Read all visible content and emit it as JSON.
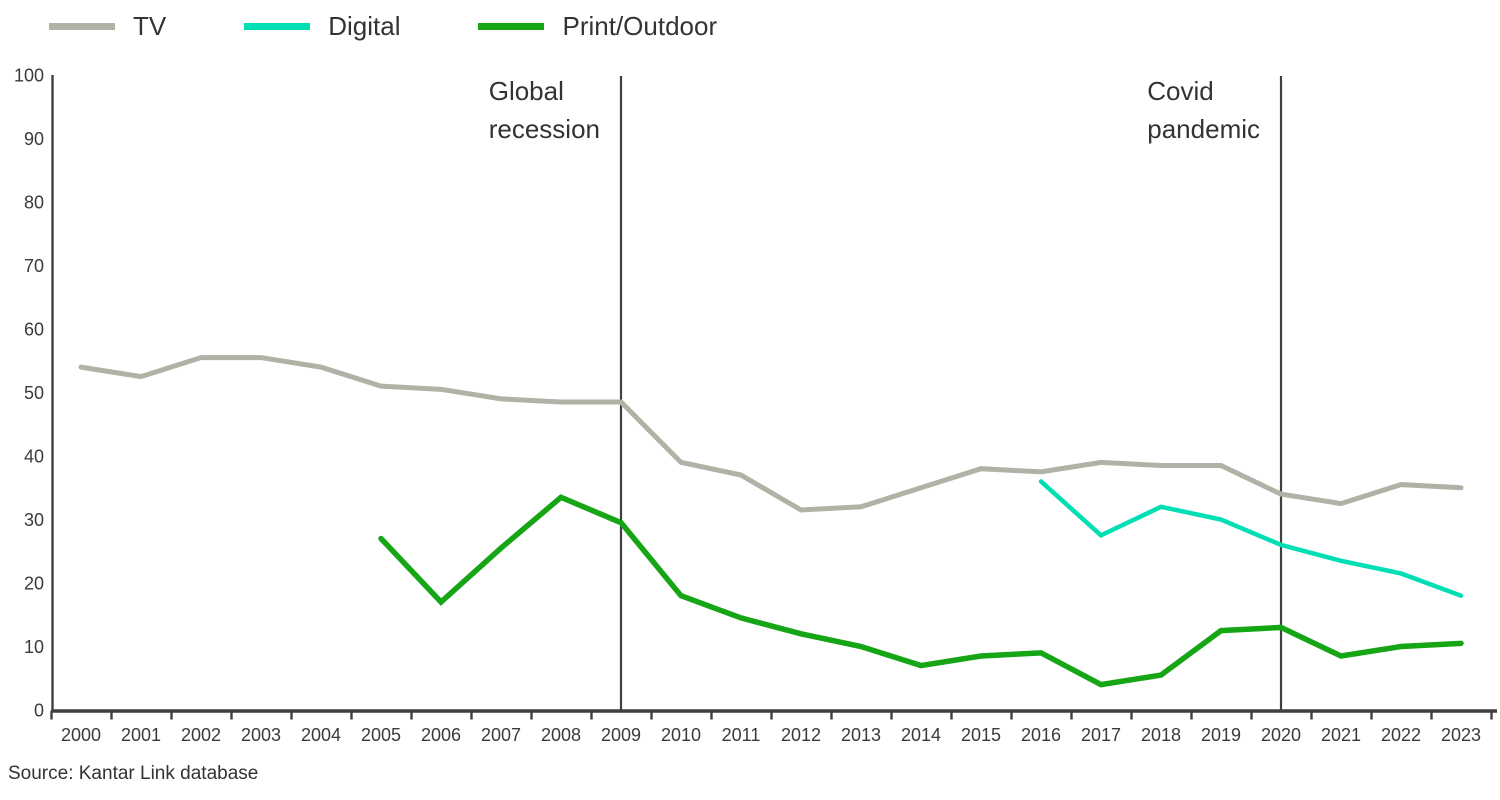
{
  "legend": {
    "items": [
      {
        "id": "tv",
        "label": "TV",
        "color": "#b1b1a5"
      },
      {
        "id": "digital",
        "label": "Digital",
        "color": "#00dfb4"
      },
      {
        "id": "print-outdoor",
        "label": "Print/Outdoor",
        "color": "#15a515"
      }
    ]
  },
  "source": "Source: Kantar Link database",
  "chart_data": {
    "type": "line",
    "title": "",
    "xlabel": "",
    "ylabel": "",
    "x_years": [
      2000,
      2001,
      2002,
      2003,
      2004,
      2005,
      2006,
      2007,
      2008,
      2009,
      2010,
      2011,
      2012,
      2013,
      2014,
      2015,
      2016,
      2017,
      2018,
      2019,
      2020,
      2021,
      2022,
      2023
    ],
    "yticks": [
      0,
      10,
      20,
      30,
      40,
      50,
      60,
      70,
      80,
      90,
      100
    ],
    "ylim": [
      0,
      100
    ],
    "grid": false,
    "legend_position": "top-left",
    "axis_color": "#3f3f3f",
    "text_color": "#3a3a3a",
    "series": [
      {
        "name": "TV",
        "color": "#b1b1a5",
        "start_year": 2000,
        "values": [
          54,
          52.5,
          55.5,
          55.5,
          54,
          51,
          50.5,
          49,
          48.5,
          48.5,
          39,
          37,
          31.5,
          32,
          35,
          38,
          37.5,
          39,
          38.5,
          38.5,
          34,
          32.5,
          35.5,
          35
        ]
      },
      {
        "name": "Digital",
        "color": "#00dfb4",
        "start_year": 2016,
        "values": [
          36,
          27.5,
          32,
          30,
          26,
          23.5,
          21.5,
          18
        ]
      },
      {
        "name": "Print/Outdoor",
        "color": "#15a515",
        "start_year": 2005,
        "values": [
          27,
          17,
          25.5,
          33.5,
          29.5,
          18,
          14.5,
          12,
          10,
          7,
          8.5,
          9,
          4,
          5.5,
          12.5,
          13,
          8.5,
          10,
          10.5
        ]
      }
    ],
    "event_lines": [
      {
        "year": 2009,
        "label_lines": [
          "Global",
          "recession"
        ]
      },
      {
        "year": 2020,
        "label_lines": [
          "Covid",
          "pandemic"
        ]
      }
    ]
  }
}
